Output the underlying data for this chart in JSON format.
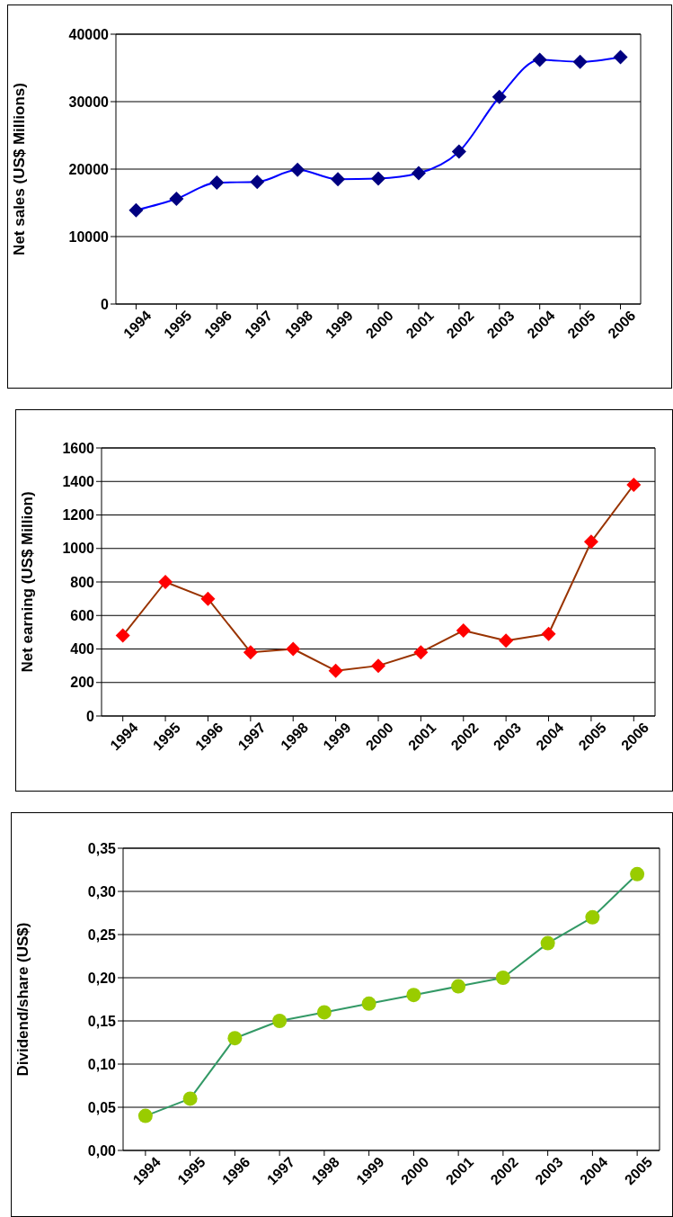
{
  "chart_data": [
    {
      "type": "line",
      "ylabel": "Net sales (US$ Millions)",
      "categories": [
        "1994",
        "1995",
        "1996",
        "1997",
        "1998",
        "1999",
        "2000",
        "2001",
        "2002",
        "2003",
        "2004",
        "2005",
        "2006"
      ],
      "series": [
        {
          "color": "#0000ff",
          "colors": [
            "#000080",
            "#000080",
            "#000080",
            "#000080",
            "#000080",
            "#000080",
            "#000080",
            "#000080",
            "#000080",
            "#000080",
            "#000080",
            "#000080",
            "#000080"
          ],
          "values": [
            13900,
            15600,
            18000,
            18100,
            19900,
            18500,
            18600,
            19400,
            22600,
            30700,
            36200,
            35900,
            36600
          ]
        }
      ],
      "ylim": [
        0,
        40000
      ],
      "yticks": [
        0,
        10000,
        20000,
        30000,
        40000
      ],
      "grid": "y",
      "marker": "diamond",
      "legend": false
    },
    {
      "type": "line",
      "ylabel": "Net earning (US$ Million)",
      "categories": [
        "1994",
        "1995",
        "1996",
        "1997",
        "1998",
        "1999",
        "2000",
        "2001",
        "2002",
        "2003",
        "2004",
        "2005",
        "2006"
      ],
      "series": [
        {
          "color": "#993300",
          "colors": [
            "#ff0000",
            "#ff0000",
            "#ff0000",
            "#ff0000",
            "#ff0000",
            "#ff0000",
            "#ff0000",
            "#ff0000",
            "#ff0000",
            "#ff0000",
            "#ff0000",
            "#ff0000",
            "#ff0000"
          ],
          "values": [
            480,
            800,
            700,
            380,
            400,
            270,
            300,
            380,
            510,
            450,
            490,
            1040,
            1380
          ]
        }
      ],
      "ylim": [
        0,
        1600
      ],
      "yticks": [
        0,
        200,
        400,
        600,
        800,
        1000,
        1200,
        1400,
        1600
      ],
      "grid": "y",
      "marker": "diamond",
      "legend": false
    },
    {
      "type": "line",
      "ylabel": "Dividend/share (US$)",
      "categories": [
        "1994",
        "1995",
        "1996",
        "1997",
        "1998",
        "1999",
        "2000",
        "2001",
        "2002",
        "2003",
        "2004",
        "2005"
      ],
      "series": [
        {
          "color": "#339966",
          "colors": [
            "#99cc00",
            "#99cc00",
            "#99cc00",
            "#99cc00",
            "#99cc00",
            "#99cc00",
            "#99cc00",
            "#99cc00",
            "#99cc00",
            "#99cc00",
            "#99cc00",
            "#99cc00"
          ],
          "values": [
            0.04,
            0.06,
            0.13,
            0.15,
            0.16,
            0.17,
            0.18,
            0.19,
            0.2,
            0.24,
            0.27,
            0.32
          ]
        }
      ],
      "ylim": [
        0,
        0.35
      ],
      "yticks": [
        {
          "value": 0,
          "label": "0,00"
        },
        {
          "value": 0.05,
          "label": "0,05"
        },
        {
          "value": 0.1,
          "label": "0,10"
        },
        {
          "value": 0.15,
          "label": "0,15"
        },
        {
          "value": 0.2,
          "label": "0,20"
        },
        {
          "value": 0.25,
          "label": "0,25"
        },
        {
          "value": 0.3,
          "label": "0,30"
        },
        {
          "value": 0.35,
          "label": "0,35"
        }
      ],
      "grid": "y",
      "marker": "circle",
      "legend": false
    }
  ]
}
